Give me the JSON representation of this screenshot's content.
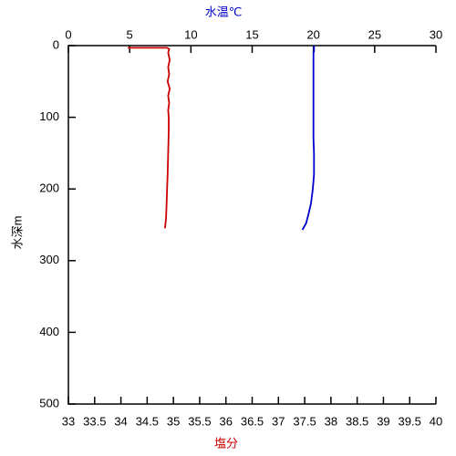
{
  "chart_data": {
    "type": "profile",
    "xlabel": "塩分",
    "x2label": "水温℃",
    "ylabel": "水深m",
    "xlabel_color": "#cc0000",
    "x2label_color": "#0000cc",
    "xlim": [
      33,
      40
    ],
    "xticks": [
      33,
      33.5,
      34,
      34.5,
      35,
      35.5,
      36,
      36.5,
      37,
      37.5,
      38,
      38.5,
      39,
      39.5,
      40
    ],
    "x2lim": [
      0,
      30
    ],
    "x2ticks": [
      0,
      5,
      10,
      15,
      20,
      25,
      30
    ],
    "ylim": [
      0,
      500
    ],
    "yticks": [
      0,
      100,
      200,
      300,
      400,
      500
    ],
    "y_inverted": true,
    "series": [
      {
        "color": "#cc0000",
        "axis": "x",
        "x": [
          34.13,
          34.88,
          34.92,
          34.9,
          34.93,
          34.9,
          34.92,
          34.89,
          34.93,
          34.9,
          34.92,
          34.9,
          34.91,
          34.91,
          34.9,
          34.89,
          34.88,
          34.87,
          34.86,
          34.84
        ],
        "y": [
          3,
          3,
          5,
          10,
          20,
          30,
          40,
          50,
          60,
          70,
          80,
          90,
          100,
          120,
          150,
          180,
          200,
          220,
          240,
          255
        ]
      },
      {
        "color": "#0000cc",
        "axis": "x2",
        "x": [
          20.05,
          20.05,
          20.0,
          20.0,
          20.0,
          20.0,
          20.0,
          20.05,
          20.05,
          19.95,
          19.8,
          19.6,
          19.4,
          19.1
        ],
        "y": [
          0,
          8,
          10,
          50,
          100,
          120,
          130,
          150,
          180,
          200,
          220,
          235,
          248,
          257
        ]
      }
    ]
  }
}
